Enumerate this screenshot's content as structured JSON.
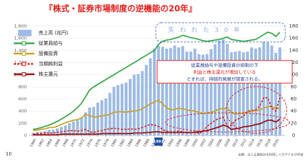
{
  "chart_data": {
    "type": "bar",
    "title": "『株式・証券市場制度の逆機能の20年』",
    "page_number": "10",
    "source": "出典：法人企業統計を利用しミネギドキが作成",
    "period_label": "失われた30年",
    "annotation": [
      "従業員給与や設備投資の抑制の下",
      "利益と株主還元が増加している",
      "とすれば、持続的発展が阻害される。"
    ],
    "x_highlight": {
      "value": 1991,
      "label": "1991"
    },
    "x": [
      1960,
      1961,
      1962,
      1963,
      1964,
      1965,
      1966,
      1967,
      1968,
      1969,
      1970,
      1971,
      1972,
      1973,
      1974,
      1975,
      1976,
      1977,
      1978,
      1979,
      1980,
      1981,
      1982,
      1983,
      1984,
      1985,
      1986,
      1987,
      1988,
      1989,
      1990,
      1991,
      1992,
      1993,
      1994,
      1995,
      1996,
      1997,
      1998,
      1999,
      2000,
      2001,
      2002,
      2003,
      2004,
      2005,
      2006,
      2007,
      2008,
      2009,
      2010,
      2011,
      2012,
      2013,
      2014,
      2015,
      2016,
      2017,
      2018,
      2019,
      2020,
      2021
    ],
    "xlim": [
      1959,
      2022
    ],
    "xticks": [
      1960,
      1962,
      1964,
      1966,
      1968,
      1970,
      1972,
      1974,
      1976,
      1978,
      1980,
      1982,
      1984,
      1986,
      1988,
      1990,
      1992,
      1994,
      1996,
      1998,
      2000,
      2002,
      2004,
      2006,
      2008,
      2010,
      2012,
      2014,
      2016,
      2018,
      2020
    ],
    "ylim": [
      0,
      1800
    ],
    "yticks": [
      0,
      200,
      400,
      600,
      800,
      {
        "value": 1000,
        "label": "1,000"
      },
      {
        "value": 1200,
        "label": "1,200"
      },
      {
        "value": 1400,
        "label": "1,400"
      },
      {
        "value": 1600,
        "label": "1,600"
      },
      {
        "value": 1800,
        "label": "1,800"
      }
    ],
    "y2lim": [
      0,
      180
    ],
    "y2ticks": [
      0,
      20,
      40,
      60,
      80,
      100,
      120,
      140,
      160,
      180
    ],
    "series": [
      {
        "name": "売上高 (兆円)",
        "kind": "bar",
        "color": "#9dbbe3",
        "values": [
          40,
          55,
          60,
          75,
          90,
          95,
          115,
          140,
          165,
          200,
          230,
          250,
          290,
          380,
          460,
          470,
          540,
          580,
          610,
          700,
          800,
          830,
          850,
          870,
          930,
          1000,
          1010,
          1060,
          1160,
          1270,
          1430,
          1480,
          1460,
          1430,
          1440,
          1480,
          1450,
          1470,
          1380,
          1380,
          1430,
          1340,
          1330,
          1340,
          1420,
          1500,
          1560,
          1580,
          1510,
          1370,
          1380,
          1390,
          1370,
          1380,
          1450,
          1430,
          1450,
          1540,
          1530,
          1480,
          1360,
          1450
        ]
      },
      {
        "name": "従業員給与",
        "kind": "line",
        "axis": "y2",
        "color": "#3aa64a",
        "values": [
          10,
          11,
          13,
          15,
          17,
          20,
          23,
          27,
          31,
          35,
          40,
          46,
          53,
          64,
          75,
          80,
          84,
          88,
          92,
          96,
          100,
          104,
          108,
          112,
          116,
          120,
          124,
          128,
          132,
          136,
          140,
          150,
          155,
          157,
          158,
          160,
          162,
          165,
          163,
          161,
          160,
          158,
          156,
          155,
          156,
          157,
          158,
          160,
          162,
          158,
          157,
          156,
          155,
          156,
          157,
          158,
          162,
          166,
          170,
          168,
          163,
          170
        ]
      },
      {
        "name": "設備投資",
        "kind": "line",
        "axis": "y2",
        "color": "#c9a227",
        "values": [
          8,
          9,
          10,
          11,
          13,
          13,
          15,
          18,
          21,
          23,
          25,
          26,
          29,
          35,
          33,
          30,
          31,
          32,
          33,
          35,
          38,
          39,
          39,
          38,
          40,
          40,
          41,
          44,
          48,
          52,
          55,
          58,
          52,
          46,
          42,
          43,
          45,
          44,
          42,
          41,
          40,
          38,
          36,
          37,
          38,
          40,
          44,
          44,
          45,
          38,
          35,
          36,
          37,
          38,
          40,
          41,
          42,
          45,
          47,
          48,
          44,
          45
        ]
      },
      {
        "name": "当期純利益",
        "kind": "line",
        "axis": "y2",
        "color": "#e0201b",
        "dash": true,
        "values": [
          2,
          3,
          3,
          4,
          4,
          4,
          5,
          6,
          7,
          8,
          8,
          7,
          8,
          10,
          6,
          5,
          7,
          8,
          10,
          11,
          12,
          11,
          10,
          10,
          11,
          10,
          11,
          13,
          16,
          18,
          17,
          15,
          10,
          7,
          6,
          6,
          7,
          6,
          4,
          5,
          6,
          3,
          7,
          15,
          20,
          25,
          28,
          30,
          15,
          17,
          25,
          28,
          32,
          40,
          41,
          42,
          48,
          62,
          62,
          45,
          40,
          62
        ]
      },
      {
        "name": "株主還元",
        "kind": "line",
        "axis": "y2",
        "color": "#9e1010",
        "values": [
          1,
          1,
          1,
          1,
          1,
          1,
          1,
          2,
          2,
          2,
          2,
          2,
          2,
          2,
          2,
          2,
          2,
          3,
          3,
          3,
          3,
          3,
          3,
          3,
          3,
          4,
          4,
          4,
          5,
          5,
          6,
          6,
          5,
          5,
          5,
          5,
          5,
          5,
          5,
          5,
          5,
          6,
          7,
          8,
          10,
          12,
          14,
          17,
          15,
          10,
          11,
          12,
          14,
          15,
          16,
          18,
          19,
          22,
          25,
          25,
          22,
          27
        ]
      }
    ]
  }
}
